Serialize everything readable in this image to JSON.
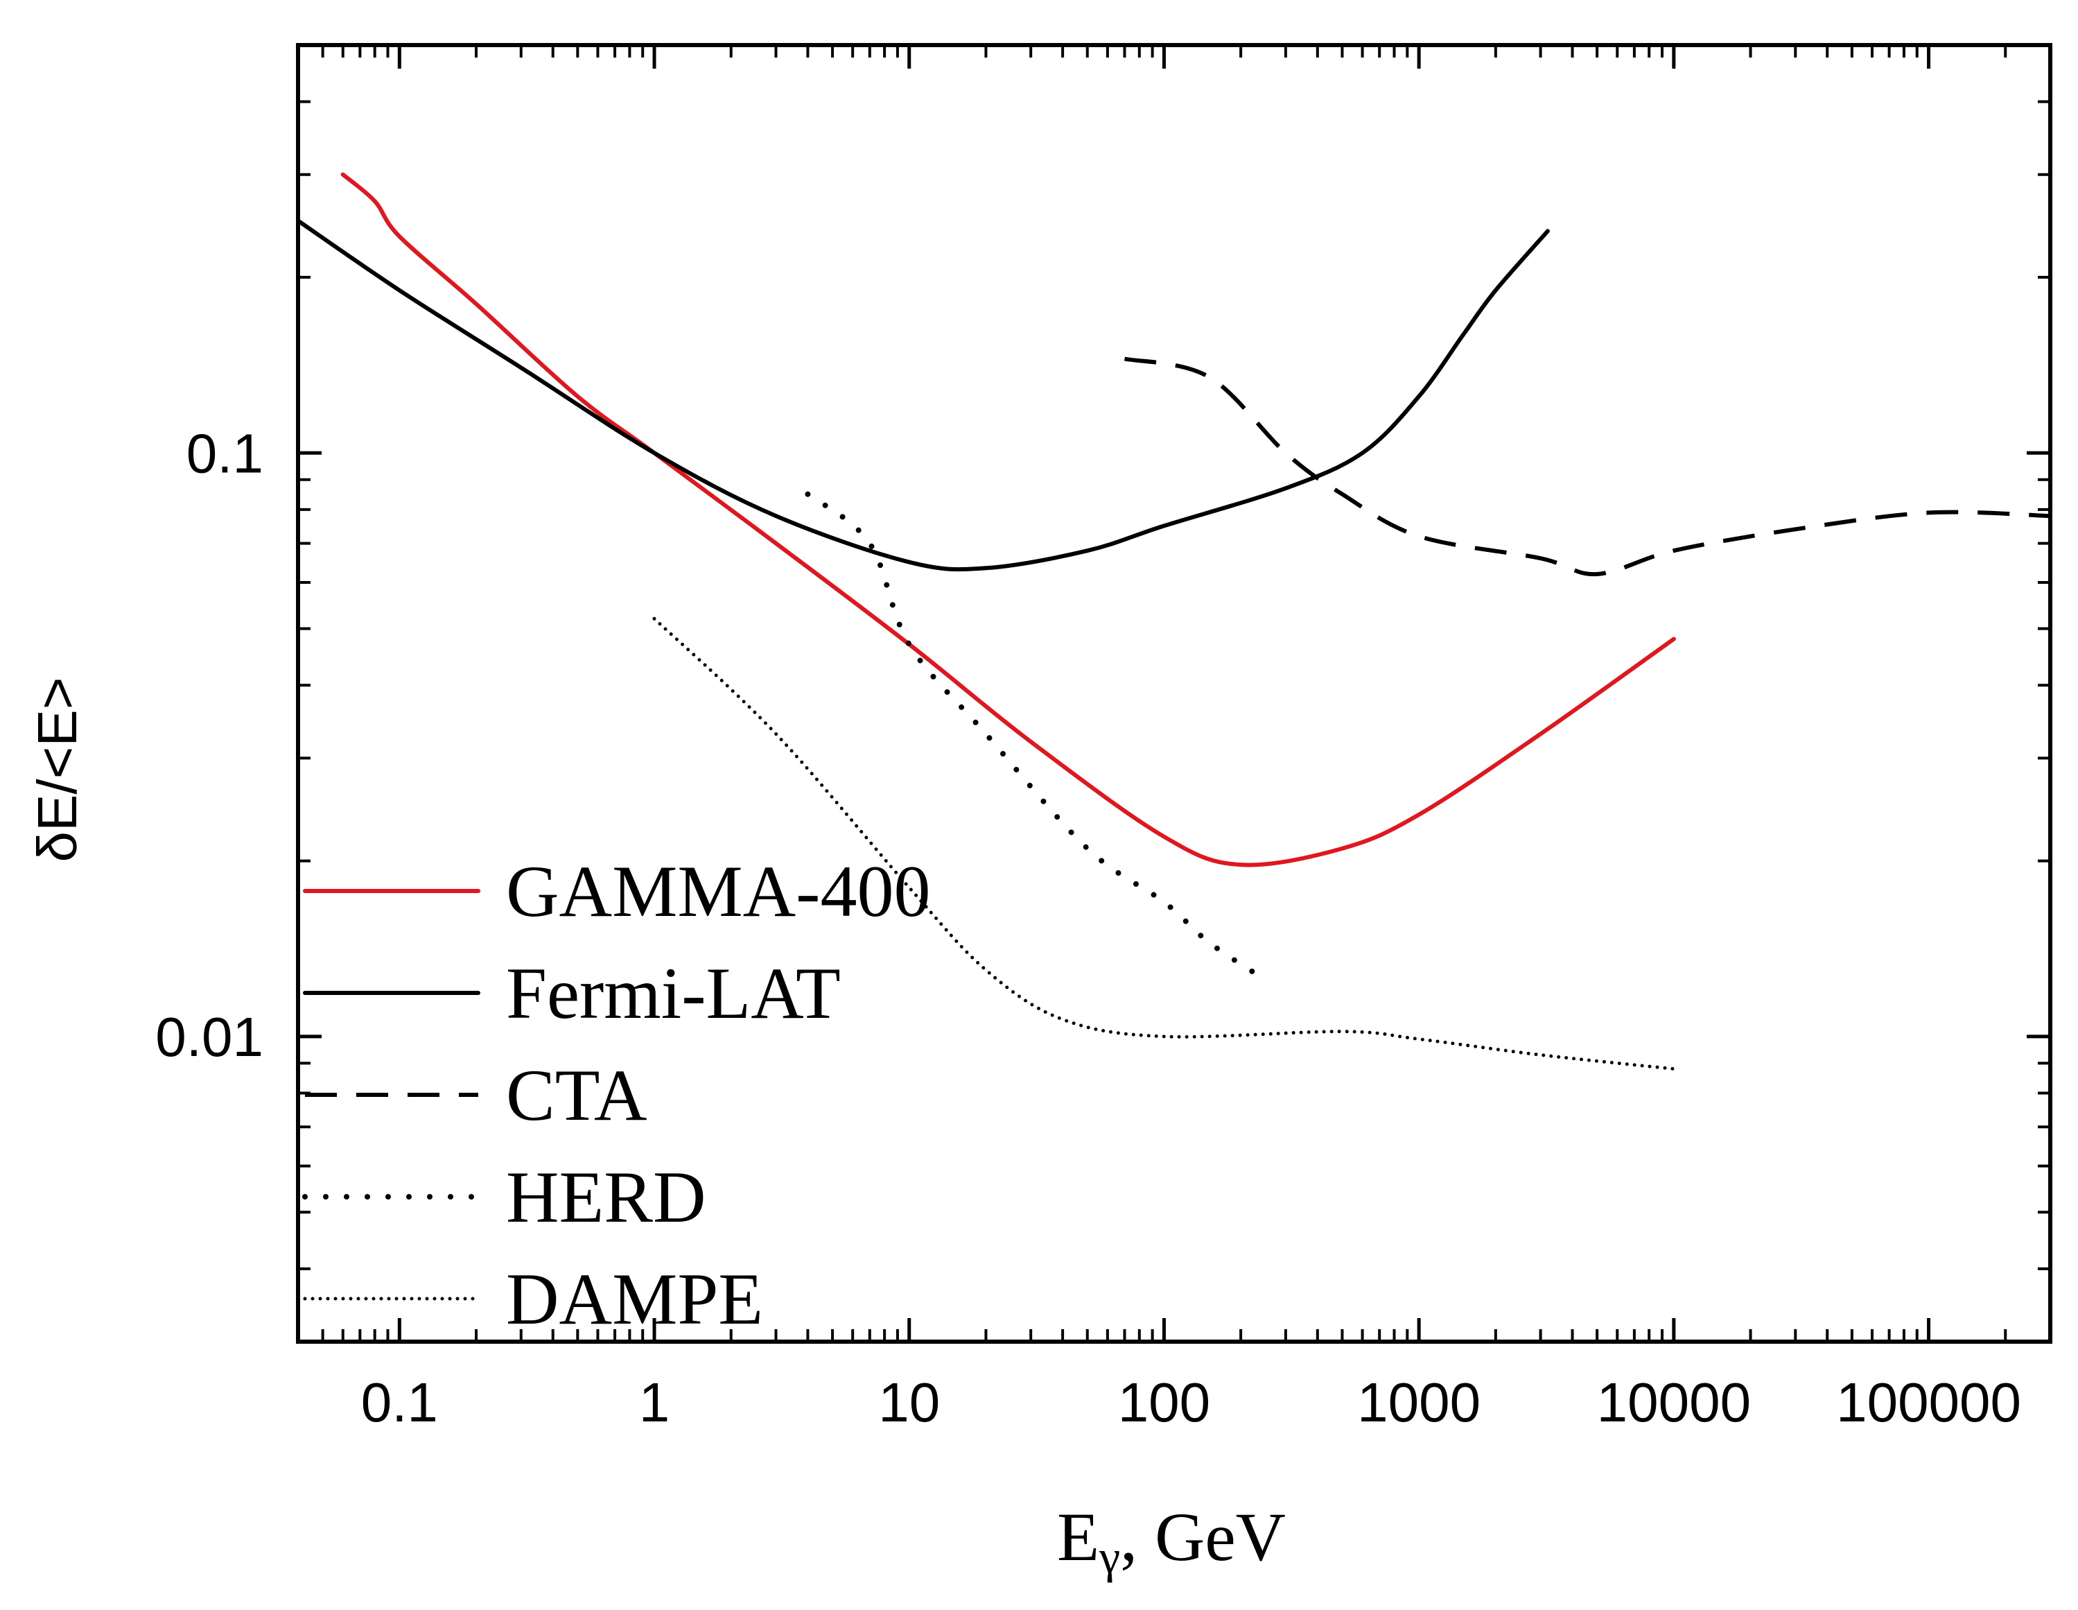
{
  "chart_data": {
    "type": "line",
    "title": "",
    "xlabel": "E",
    "xlabel_sub": "γ",
    "xlabel_suffix": ", GeV",
    "ylabel": "δE/<E>",
    "xscale": "log",
    "yscale": "log",
    "xlim": [
      0.04,
      300000
    ],
    "ylim": [
      0.003,
      0.5
    ],
    "grid": false,
    "legend_position": "bottom-left",
    "x_tick_labels": [
      {
        "value": 0.1,
        "label": "0.1"
      },
      {
        "value": 1,
        "label": "1"
      },
      {
        "value": 10,
        "label": "10"
      },
      {
        "value": 100,
        "label": "100"
      },
      {
        "value": 1000,
        "label": "1000"
      },
      {
        "value": 10000,
        "label": "10000"
      },
      {
        "value": 100000,
        "label": "100000"
      }
    ],
    "y_tick_labels": [
      {
        "value": 0.1,
        "label": "0.1"
      },
      {
        "value": 0.01,
        "label": "0.01"
      }
    ],
    "series": [
      {
        "name": "GAMMA-400",
        "color": "#e0171f",
        "style": "solid",
        "points": [
          [
            0.06,
            0.3
          ],
          [
            0.08,
            0.27
          ],
          [
            0.1,
            0.235
          ],
          [
            0.2,
            0.18
          ],
          [
            0.5,
            0.125
          ],
          [
            1,
            0.1
          ],
          [
            3,
            0.07
          ],
          [
            10,
            0.047
          ],
          [
            30,
            0.032
          ],
          [
            100,
            0.022
          ],
          [
            200,
            0.0197
          ],
          [
            500,
            0.021
          ],
          [
            1000,
            0.024
          ],
          [
            3000,
            0.033
          ],
          [
            10000,
            0.048
          ]
        ]
      },
      {
        "name": "Fermi-LAT",
        "color": "#000000",
        "style": "solid",
        "points": [
          [
            0.04,
            0.25
          ],
          [
            0.1,
            0.19
          ],
          [
            0.3,
            0.14
          ],
          [
            1,
            0.1
          ],
          [
            3,
            0.078
          ],
          [
            10,
            0.065
          ],
          [
            20,
            0.0635
          ],
          [
            50,
            0.068
          ],
          [
            100,
            0.075
          ],
          [
            300,
            0.087
          ],
          [
            600,
            0.1
          ],
          [
            1000,
            0.125
          ],
          [
            1500,
            0.16
          ],
          [
            2000,
            0.19
          ],
          [
            3200,
            0.24
          ]
        ]
      },
      {
        "name": "CTA",
        "color": "#000000",
        "style": "dashed",
        "points": [
          [
            70,
            0.145
          ],
          [
            150,
            0.135
          ],
          [
            300,
            0.1
          ],
          [
            500,
            0.085
          ],
          [
            1000,
            0.072
          ],
          [
            3000,
            0.066
          ],
          [
            5000,
            0.062
          ],
          [
            10000,
            0.068
          ],
          [
            30000,
            0.074
          ],
          [
            100000,
            0.079
          ],
          [
            300000,
            0.078
          ]
        ]
      },
      {
        "name": "HERD",
        "color": "#000000",
        "style": "dotted",
        "points": [
          [
            4,
            0.085
          ],
          [
            7,
            0.07
          ],
          [
            10,
            0.047
          ],
          [
            20,
            0.033
          ],
          [
            50,
            0.021
          ],
          [
            100,
            0.017
          ],
          [
            150,
            0.0145
          ],
          [
            250,
            0.0125
          ]
        ]
      },
      {
        "name": "DAMPE",
        "color": "#000000",
        "style": "fine-dotted",
        "points": [
          [
            1,
            0.052
          ],
          [
            3,
            0.033
          ],
          [
            10,
            0.018
          ],
          [
            20,
            0.013
          ],
          [
            40,
            0.0107
          ],
          [
            100,
            0.01
          ],
          [
            500,
            0.0102
          ],
          [
            1000,
            0.0099
          ],
          [
            3000,
            0.0093
          ],
          [
            10000,
            0.0088
          ]
        ]
      }
    ]
  }
}
